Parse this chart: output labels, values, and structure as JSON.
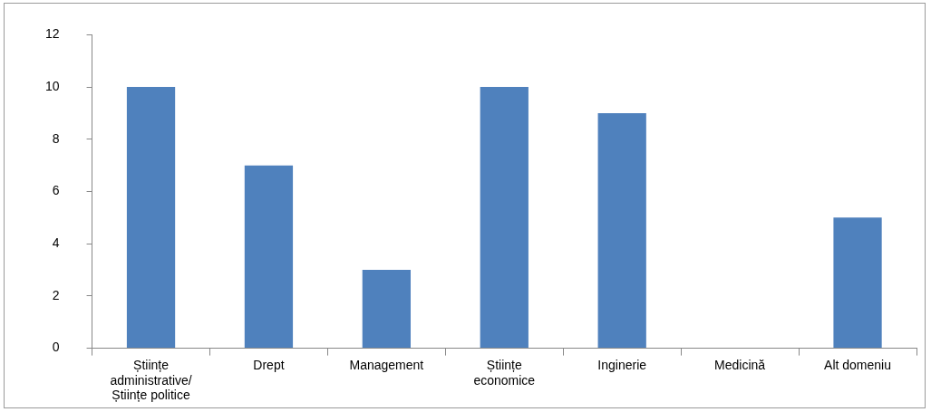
{
  "chart_data": {
    "type": "bar",
    "categories": [
      "Științe administrative/ Științe politice",
      "Drept",
      "Management",
      "Științe economice",
      "Inginerie",
      "Medicină",
      "Alt domeniu"
    ],
    "values": [
      10,
      7,
      3,
      10,
      9,
      0,
      5
    ],
    "color": "#4f81bd",
    "ylim": [
      0,
      12
    ],
    "yticks": [
      0,
      2,
      4,
      6,
      8,
      10,
      12
    ],
    "grid": false,
    "legend": false
  }
}
